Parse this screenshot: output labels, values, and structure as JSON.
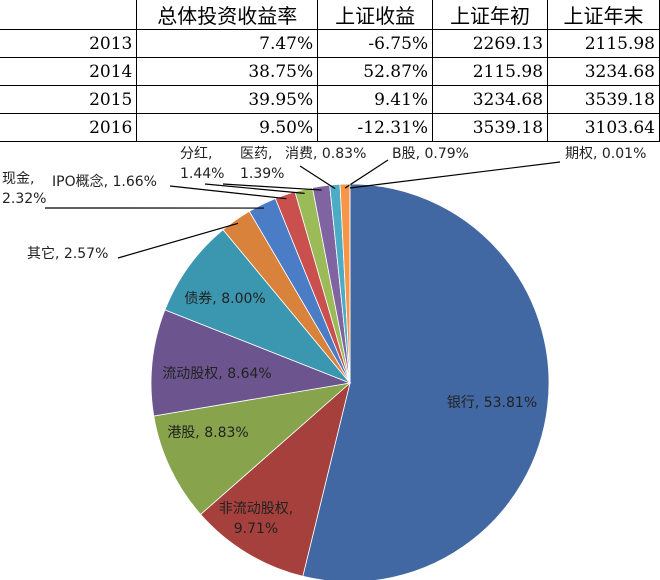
{
  "table": {
    "header": [
      "总体投资收益率",
      "上证收益",
      "上证年初",
      "上证年末"
    ],
    "rows": [
      [
        "2013",
        "7.47%",
        "-6.75%",
        "2269.13",
        "2115.98"
      ],
      [
        "2014",
        "38.75%",
        "52.87%",
        "2115.98",
        "3234.68"
      ],
      [
        "2015",
        "39.95%",
        "9.41%",
        "3234.68",
        "3539.18"
      ],
      [
        "2016",
        "9.50%",
        "-12.31%",
        "3539.18",
        "3103.64"
      ]
    ]
  },
  "chart_data": {
    "type": "pie",
    "values": [
      53.81,
      9.71,
      8.83,
      8.64,
      8.0,
      2.57,
      2.32,
      1.66,
      1.44,
      1.39,
      0.83,
      0.79,
      0.01
    ],
    "value_labels": [
      "银行, 53.81%",
      "非流动股权,\n9.71%",
      "港股, 8.83%",
      "流动股权, 8.64%",
      "债券, 8.00%",
      "其它, 2.57%",
      "现金,\n2.32%",
      "IPO概念, 1.66%",
      "分红,\n1.44%",
      "医药,\n1.39%",
      "消费, 0.83%",
      "B股, 0.79%",
      "期权, 0.01%"
    ],
    "colors": [
      "#4168a3",
      "#a5403d",
      "#87a34b",
      "#6c558e",
      "#3b96b0",
      "#d9823b",
      "#4a7dc6",
      "#c9504d",
      "#9bbb59",
      "#8064a2",
      "#4bacc6",
      "#f79646",
      "#2f5597"
    ]
  }
}
